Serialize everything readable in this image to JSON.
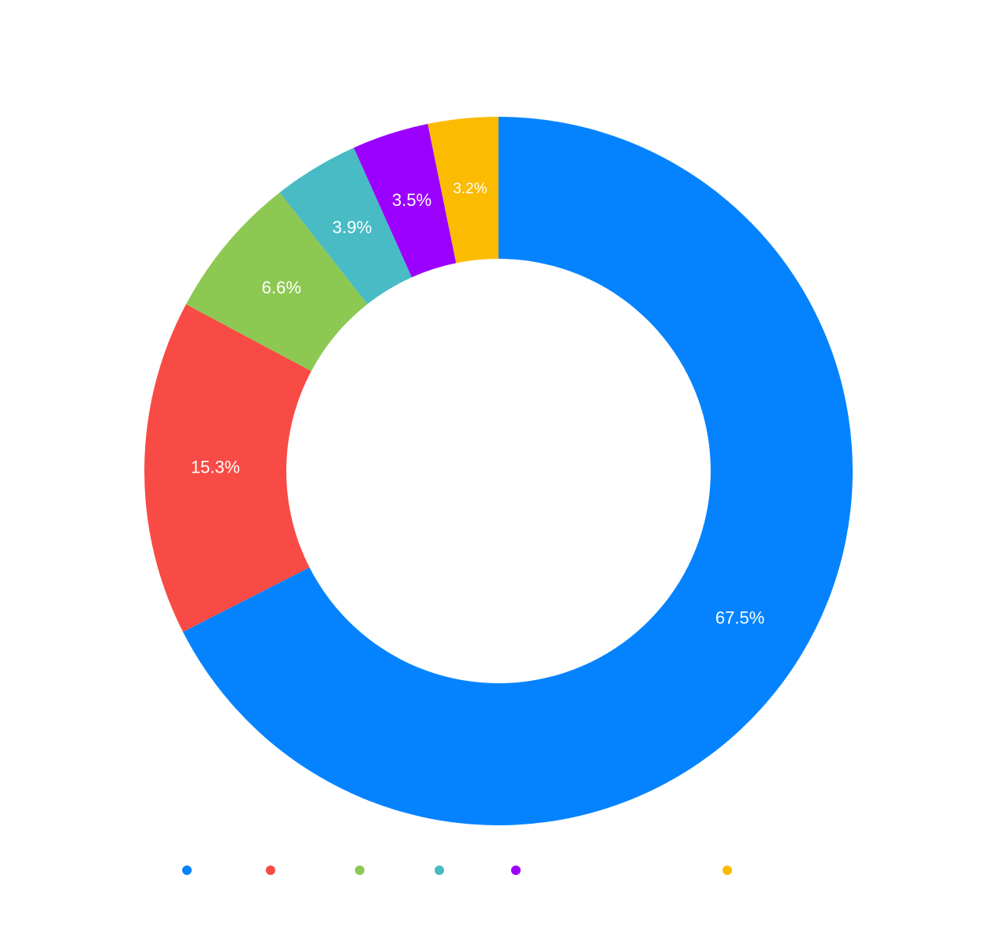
{
  "chart_data": {
    "type": "pie",
    "values": [
      67.5,
      15.3,
      6.6,
      3.9,
      3.5,
      3.2
    ],
    "value_labels": [
      "67.5%",
      "15.3%",
      "6.6%",
      "3.9%",
      "3.5%",
      "3.2%"
    ],
    "colors": [
      "#0583ff",
      "#f84b45",
      "#8dc853",
      "#48bbc5",
      "#9b00ff",
      "#fbbb00"
    ],
    "legend": "bottom"
  }
}
